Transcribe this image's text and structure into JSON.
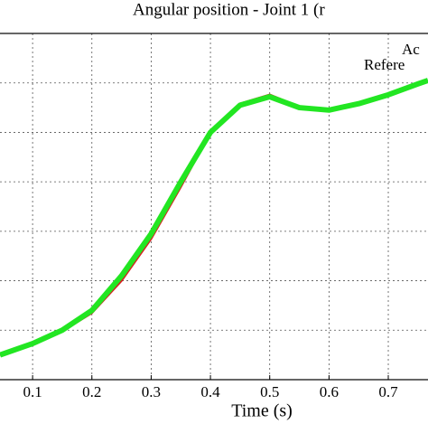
{
  "chart_data": {
    "type": "line",
    "title": "Angular position - Joint 1 (r",
    "xlabel": "Time (s)",
    "x": [
      0.045,
      0.1,
      0.15,
      0.2,
      0.25,
      0.3,
      0.35,
      0.4,
      0.45,
      0.5,
      0.55,
      0.6,
      0.65,
      0.7,
      0.75,
      0.767
    ],
    "series": [
      {
        "name": "Ac",
        "color": "#22e622",
        "values": [
          0.5,
          0.73,
          1.0,
          1.4,
          2.1,
          2.95,
          4.0,
          5.0,
          5.55,
          5.72,
          5.5,
          5.45,
          5.58,
          5.76,
          5.98,
          6.05
        ]
      },
      {
        "name": "Refere",
        "color": "#d62020",
        "values": [
          0.5,
          0.72,
          0.98,
          1.35,
          2.0,
          2.85,
          3.9,
          5.0,
          5.58,
          5.76,
          5.52,
          5.45,
          5.57,
          5.75,
          5.97,
          6.04
        ]
      }
    ],
    "xlim": [
      0.045,
      0.767
    ],
    "ylim": [
      0,
      7
    ],
    "xticks": [
      0.1,
      0.2,
      0.3,
      0.4,
      0.5,
      0.6,
      0.7
    ],
    "ygrid": [
      1,
      2,
      3,
      4,
      5,
      6
    ],
    "grid": true
  }
}
